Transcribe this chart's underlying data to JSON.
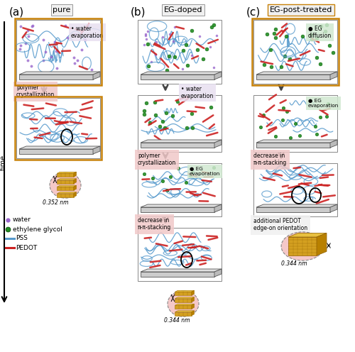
{
  "title_a": "(a)",
  "title_b": "(b)",
  "title_c": "(c)",
  "label_a": "pure",
  "label_b": "EG-doped",
  "label_c": "EG-post-treated",
  "legend_items": [
    "water",
    "ethylene glycol",
    "PSS",
    "PEDOT"
  ],
  "time_label": "time",
  "nm_a": "0.352 nm",
  "nm_b": "0.344 nm",
  "nm_c": "0.344 nm",
  "bg_color": "#ffffff",
  "panel_border_orange": "#c8820a",
  "water_color": "#9966cc",
  "eg_color": "#228b22",
  "pss_color": "#5599cc",
  "pedot_color": "#cc2222",
  "arrow_color": "#444444",
  "label_bg_pink": "#f0c8c8",
  "label_bg_purple": "#e0d0e8",
  "label_bg_green": "#d0e8d0",
  "gold_color": "#d4a020",
  "gold_dark": "#b87800",
  "pink_bg": "#f5c8c8"
}
